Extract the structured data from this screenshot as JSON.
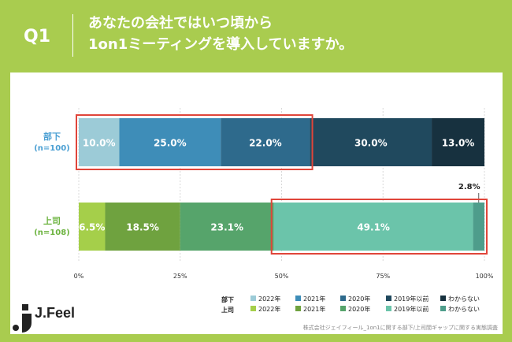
{
  "header": {
    "q_label": "Q1",
    "question_line1": "あなたの会社ではいつ頃から",
    "question_line2": "1on1ミーティングを導入していますか。"
  },
  "brand": {
    "name": "J.Feel"
  },
  "footnote": "株式会社ジェイフィール_1on1に関する部下/上司間ギャップに関する実態調査",
  "colors": {
    "background": "#a9cc4f",
    "highlight_box": "#e0453a",
    "buka_label": "#4a9fd3",
    "joushi_label": "#6cb33f"
  },
  "chart_data": {
    "type": "bar",
    "orientation": "horizontal",
    "stacked": true,
    "xlim": [
      0,
      100
    ],
    "ticks": [
      "0%",
      "25%",
      "50%",
      "75%",
      "100%"
    ],
    "rows": [
      {
        "label": "部下",
        "n": "(n=100)",
        "categories": [
          "2022年",
          "2021年",
          "2020年",
          "2019年以前",
          "わからない"
        ],
        "values": [
          10.0,
          25.0,
          22.0,
          30.0,
          13.0
        ],
        "labels": [
          "10.0%",
          "25.0%",
          "22.0%",
          "30.0%",
          "13.0%"
        ],
        "colors": [
          "#9ccbd7",
          "#3e8db8",
          "#2e6a8c",
          "#20495e",
          "#17313f"
        ]
      },
      {
        "label": "上司",
        "n": "(n=108)",
        "categories": [
          "2022年",
          "2021年",
          "2020年",
          "2019年以前",
          "わからない"
        ],
        "values": [
          6.5,
          18.5,
          23.1,
          49.1,
          2.8
        ],
        "labels": [
          "6.5%",
          "18.5%",
          "23.1%",
          "49.1%",
          "2.8%"
        ],
        "colors": [
          "#a5cf4a",
          "#6fa23f",
          "#56a46b",
          "#6bc4aa",
          "#4e9d8b"
        ]
      }
    ],
    "highlight": [
      {
        "row": 0,
        "from": 0,
        "to": 57
      },
      {
        "row": 1,
        "from": 48.1,
        "to": 100
      }
    ],
    "legend": {
      "rows": [
        {
          "label": "部下",
          "items": [
            "2022年",
            "2021年",
            "2020年",
            "2019年以前",
            "わからない"
          ]
        },
        {
          "label": "上司",
          "items": [
            "2022年",
            "2021年",
            "2020年",
            "2019年以前",
            "わからない"
          ]
        }
      ]
    }
  }
}
